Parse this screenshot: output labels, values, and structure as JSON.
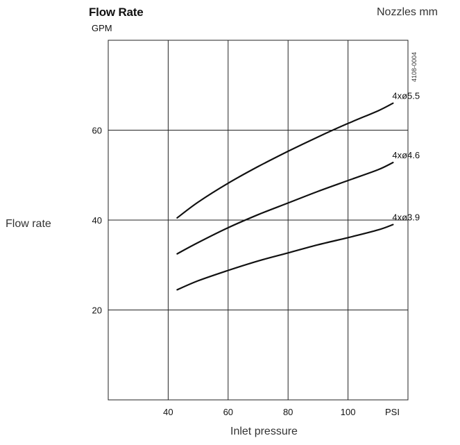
{
  "header": {
    "title": "Flow Rate",
    "unit": "GPM",
    "series_unit_label": "Nozzles mm",
    "drawing_code": "4108-0004"
  },
  "axes": {
    "ylabel": "Flow rate",
    "xlabel": "Inlet pressure",
    "x_unit": "PSI"
  },
  "chart_data": {
    "type": "line",
    "title": "Flow Rate",
    "ylabel": "Flow rate",
    "y_unit": "GPM",
    "xlabel": "Inlet pressure",
    "x_unit": "PSI",
    "xlim": [
      20,
      120
    ],
    "ylim": [
      0,
      80
    ],
    "x_ticks": [
      40,
      60,
      80,
      100
    ],
    "y_ticks": [
      20,
      40,
      60
    ],
    "x_tick_labels": [
      "40",
      "60",
      "80",
      "100"
    ],
    "y_tick_labels": [
      "20",
      "40",
      "60"
    ],
    "grid": true,
    "legend": "inline labels at line ends",
    "series": [
      {
        "name": "4xø5.5",
        "x": [
          43,
          50,
          60,
          70,
          80,
          90,
          100,
          110,
          115
        ],
        "y": [
          40.5,
          44.0,
          48.2,
          51.9,
          55.3,
          58.5,
          61.5,
          64.3,
          66.0
        ]
      },
      {
        "name": "4xø4.6",
        "x": [
          43,
          50,
          60,
          70,
          80,
          90,
          100,
          110,
          115
        ],
        "y": [
          32.5,
          35.0,
          38.3,
          41.2,
          43.8,
          46.4,
          48.8,
          51.2,
          52.8
        ]
      },
      {
        "name": "4xø3.9",
        "x": [
          43,
          50,
          60,
          70,
          80,
          90,
          100,
          110,
          115
        ],
        "y": [
          24.5,
          26.5,
          28.8,
          30.9,
          32.7,
          34.5,
          36.1,
          37.8,
          39.0
        ]
      }
    ]
  }
}
